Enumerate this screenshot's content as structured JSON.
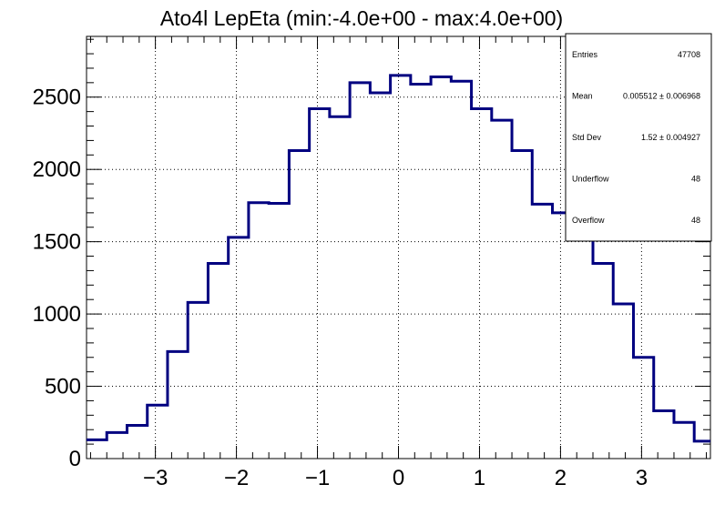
{
  "chart_data": {
    "type": "histogram",
    "title": "Ato4l LepEta (min:-4.0e+00 - max:4.0e+00)",
    "xlabel": "",
    "ylabel": "",
    "xlim": [
      -3.85,
      3.85
    ],
    "ylim": [
      0,
      2920
    ],
    "grid": true,
    "line_color": "#000080",
    "x_ticks": [
      -3,
      -2,
      -1,
      0,
      1,
      2,
      3
    ],
    "x_tick_labels": [
      "−3",
      "−2",
      "−1",
      "0",
      "1",
      "2",
      "3"
    ],
    "y_ticks": [
      0,
      500,
      1000,
      1500,
      2000,
      2500
    ],
    "y_tick_labels": [
      "0",
      "500",
      "1000",
      "1500",
      "2000",
      "2500"
    ],
    "bin_edges": [
      -3.85,
      -3.6,
      -3.35,
      -3.1,
      -2.85,
      -2.6,
      -2.35,
      -2.1,
      -1.85,
      -1.6,
      -1.35,
      -1.1,
      -0.85,
      -0.6,
      -0.35,
      -0.1,
      0.15,
      0.4,
      0.65,
      0.9,
      1.15,
      1.4,
      1.65,
      1.9,
      2.15,
      2.4,
      2.65,
      2.9,
      3.15,
      3.4,
      3.65,
      3.85
    ],
    "values": [
      130,
      180,
      230,
      370,
      740,
      1080,
      1350,
      1530,
      1770,
      1765,
      2130,
      2420,
      2365,
      2600,
      2530,
      2650,
      2590,
      2640,
      2610,
      2420,
      2340,
      2130,
      1760,
      1700,
      1580,
      1350,
      1070,
      700,
      330,
      250,
      120
    ],
    "stats_box": {
      "rows": [
        {
          "label": "Entries",
          "value": "47708"
        },
        {
          "label": "Mean",
          "value": "0.005512  ± 0.006968"
        },
        {
          "label": "Std Dev",
          "value": "1.52  ± 0.004927"
        },
        {
          "label": "Underflow",
          "value": "48"
        },
        {
          "label": "Overflow",
          "value": "48"
        }
      ]
    }
  }
}
